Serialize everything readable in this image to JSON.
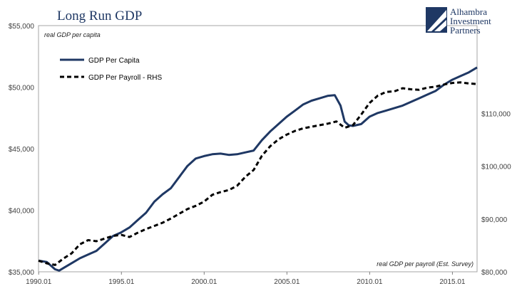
{
  "chart_data": {
    "type": "line",
    "title": "Long Run GDP",
    "left_axis_note": "real GDP per capita",
    "right_axis_note": "real GDP per payroll (Est. Survey)",
    "x_ticks": [
      "1990.01",
      "1995.01",
      "2000.01",
      "2005.01",
      "2010.01",
      "2015.01"
    ],
    "x_range": [
      1990.0,
      2016.5
    ],
    "y_left": {
      "range": [
        35000,
        55000
      ],
      "ticks": [
        "$35,000",
        "$40,000",
        "$45,000",
        "$50,000",
        "$55,000"
      ],
      "tick_values": [
        35000,
        40000,
        45000,
        50000,
        55000
      ]
    },
    "y_right": {
      "range": [
        80000,
        126667
      ],
      "ticks": [
        "$80,000",
        "$90,000",
        "$100,000",
        "$110,000"
      ],
      "tick_values": [
        80000,
        90000,
        100000,
        110000
      ]
    },
    "grid": false,
    "legend_position": "top-left",
    "series": [
      {
        "name": "GDP Per Capita",
        "axis": "left",
        "style": "solid",
        "color": "#1f3864",
        "x": [
          1990.0,
          1990.5,
          1991.0,
          1991.25,
          1991.5,
          1992.0,
          1992.5,
          1993.0,
          1993.5,
          1994.0,
          1994.5,
          1995.0,
          1995.5,
          1996.0,
          1996.5,
          1997.0,
          1997.5,
          1998.0,
          1998.5,
          1999.0,
          1999.5,
          2000.0,
          2000.5,
          2001.0,
          2001.5,
          2002.0,
          2002.5,
          2003.0,
          2003.5,
          2004.0,
          2004.5,
          2005.0,
          2005.5,
          2006.0,
          2006.5,
          2007.0,
          2007.5,
          2007.9,
          2008.25,
          2008.5,
          2008.75,
          2009.0,
          2009.5,
          2010.0,
          2010.5,
          2011.0,
          2011.5,
          2012.0,
          2012.5,
          2013.0,
          2013.5,
          2014.0,
          2014.5,
          2015.0,
          2015.5,
          2016.0,
          2016.5
        ],
        "values": [
          35900,
          35800,
          35200,
          35100,
          35300,
          35700,
          36100,
          36400,
          36700,
          37300,
          37900,
          38200,
          38600,
          39200,
          39800,
          40700,
          41300,
          41800,
          42700,
          43600,
          44200,
          44400,
          44550,
          44600,
          44500,
          44550,
          44700,
          44850,
          45700,
          46400,
          47000,
          47600,
          48100,
          48600,
          48900,
          49100,
          49300,
          49350,
          48500,
          47200,
          46900,
          46850,
          47000,
          47600,
          47900,
          48100,
          48300,
          48500,
          48800,
          49100,
          49400,
          49700,
          50200,
          50600,
          50900,
          51200,
          51600
        ]
      },
      {
        "name": "GDP Per Payroll - RHS",
        "axis": "right",
        "style": "dashed",
        "color": "#000000",
        "x": [
          1990.0,
          1990.5,
          1991.0,
          1991.5,
          1992.0,
          1992.5,
          1993.0,
          1993.5,
          1994.0,
          1994.5,
          1995.0,
          1995.5,
          1996.0,
          1996.5,
          1997.0,
          1997.5,
          1998.0,
          1998.5,
          1999.0,
          1999.5,
          2000.0,
          2000.5,
          2001.0,
          2001.5,
          2002.0,
          2002.5,
          2003.0,
          2003.5,
          2004.0,
          2004.5,
          2005.0,
          2005.5,
          2006.0,
          2006.5,
          2007.0,
          2007.5,
          2008.0,
          2008.5,
          2009.0,
          2009.5,
          2010.0,
          2010.5,
          2011.0,
          2011.5,
          2012.0,
          2012.5,
          2013.0,
          2013.5,
          2014.0,
          2014.5,
          2015.0,
          2015.5,
          2016.0,
          2016.5
        ],
        "values": [
          82100,
          81600,
          81300,
          82500,
          83500,
          85200,
          86000,
          85800,
          86300,
          86800,
          87000,
          86600,
          87400,
          88100,
          88700,
          89300,
          90100,
          91000,
          91900,
          92500,
          93300,
          94600,
          95100,
          95500,
          96300,
          98000,
          99300,
          102000,
          103800,
          105100,
          106000,
          106700,
          107200,
          107500,
          107800,
          108100,
          108500,
          107300,
          107800,
          109800,
          112000,
          113400,
          114100,
          114200,
          114800,
          114600,
          114500,
          114900,
          115100,
          115500,
          115800,
          115900,
          115700,
          115600
        ]
      }
    ]
  },
  "logo": {
    "line1": "Alhambra",
    "line2": "Investment",
    "line3": "Partners"
  }
}
